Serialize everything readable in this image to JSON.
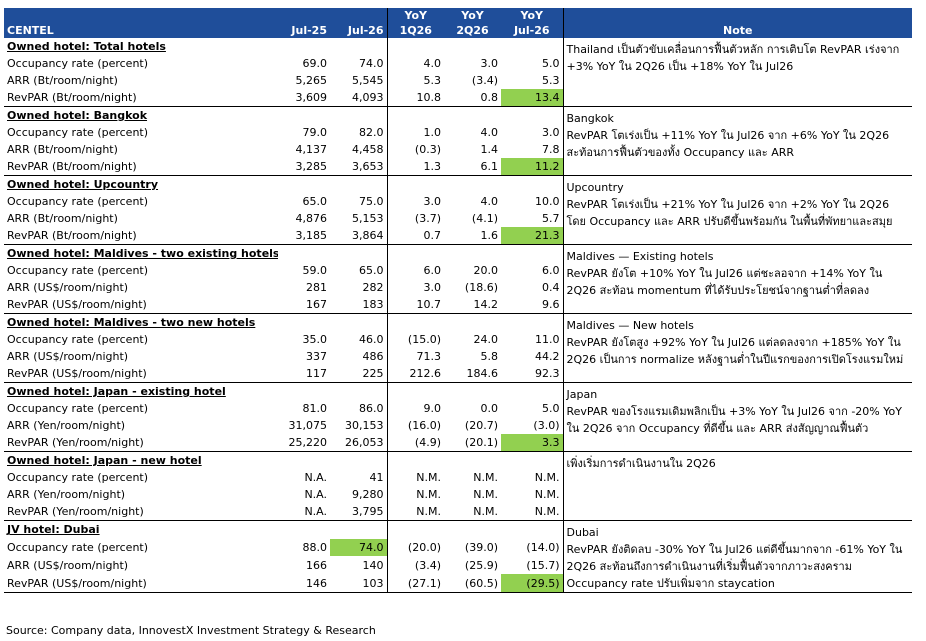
{
  "header": {
    "company": "CENTEL",
    "col_jul25": "Jul-25",
    "col_jul26": "Jul-26",
    "yoy_label": "YoY",
    "col_1q26": "1Q26",
    "col_2q26": "2Q26",
    "col_jul26_yoy": "Jul-26",
    "col_note": "Note"
  },
  "sections": [
    {
      "title": "Owned hotel: Total hotels",
      "rows": [
        {
          "label": "Occupancy rate (percent)",
          "v1": "69.0",
          "v2": "74.0",
          "y1": "4.0",
          "y2": "3.0",
          "y3": "5.0"
        },
        {
          "label": "ARR (Bt/room/night)",
          "v1": "5,265",
          "v2": "5,545",
          "y1": "5.3",
          "y2": "(3.4)",
          "y3": "5.3"
        },
        {
          "label": "RevPAR (Bt/room/night)",
          "v1": "3,609",
          "v2": "4,093",
          "y1": "10.8",
          "y2": "0.8",
          "y3": "13.4"
        }
      ],
      "note": "Thailand เป็นตัวขับเคลื่อนการฟื้นตัวหลัก การเติบโต RevPAR เร่งจาก +3% YoY ใน 2Q26 เป็น +18% YoY ใน Jul26"
    },
    {
      "title": "Owned hotel: Bangkok",
      "rows": [
        {
          "label": "Occupancy rate (percent)",
          "v1": "79.0",
          "v2": "82.0",
          "y1": "1.0",
          "y2": "4.0",
          "y3": "3.0"
        },
        {
          "label": "ARR (Bt/room/night)",
          "v1": "4,137",
          "v2": "4,458",
          "y1": "(0.3)",
          "y2": "1.4",
          "y3": "7.8"
        },
        {
          "label": "RevPAR (Bt/room/night)",
          "v1": "3,285",
          "v2": "3,653",
          "y1": "1.3",
          "y2": "6.1",
          "y3": "11.2"
        }
      ],
      "note": "Bangkok\nRevPAR โตเร่งเป็น +11% YoY ใน Jul26 จาก +6% YoY ใน 2Q26 สะท้อนการฟื้นตัวของทั้ง Occupancy และ ARR"
    },
    {
      "title": "Owned hotel: Upcountry",
      "rows": [
        {
          "label": "Occupancy rate (percent)",
          "v1": "65.0",
          "v2": "75.0",
          "y1": "3.0",
          "y2": "4.0",
          "y3": "10.0"
        },
        {
          "label": "ARR (Bt/room/night)",
          "v1": "4,876",
          "v2": "5,153",
          "y1": "(3.7)",
          "y2": "(4.1)",
          "y3": "5.7"
        },
        {
          "label": "RevPAR (Bt/room/night)",
          "v1": "3,185",
          "v2": "3,864",
          "y1": "0.7",
          "y2": "1.6",
          "y3": "21.3"
        }
      ],
      "note": "Upcountry\nRevPAR โตเร่งเป็น +21% YoY ใน Jul26 จาก +2% YoY ใน 2Q26 โดย Occupancy และ ARR ปรับดีขึ้นพร้อมกัน ในพื้นที่พัทยาและสมุย"
    },
    {
      "title": "Owned hotel: Maldives - two existing hotels",
      "rows": [
        {
          "label": "Occupancy rate (percent)",
          "v1": "59.0",
          "v2": "65.0",
          "y1": "6.0",
          "y2": "20.0",
          "y3": "6.0"
        },
        {
          "label": "ARR (US$/room/night)",
          "v1": "281",
          "v2": "282",
          "y1": "3.0",
          "y2": "(18.6)",
          "y3": "0.4"
        },
        {
          "label": "RevPAR (US$/room/night)",
          "v1": "167",
          "v2": "183",
          "y1": "10.7",
          "y2": "14.2",
          "y3": "9.6"
        }
      ],
      "note": "Maldives — Existing hotels\nRevPAR ยังโต +10% YoY ใน Jul26 แต่ชะลอจาก +14% YoY ใน 2Q26 สะท้อน momentum ที่ได้รับประโยชน์จากฐานต่ำที่ลดลง"
    },
    {
      "title": "Owned hotel: Maldives - two new hotels",
      "rows": [
        {
          "label": "Occupancy rate (percent)",
          "v1": "35.0",
          "v2": "46.0",
          "y1": "(15.0)",
          "y2": "24.0",
          "y3": "11.0"
        },
        {
          "label": "ARR (US$/room/night)",
          "v1": "337",
          "v2": "486",
          "y1": "71.3",
          "y2": "5.8",
          "y3": "44.2"
        },
        {
          "label": "RevPAR (US$/room/night)",
          "v1": "117",
          "v2": "225",
          "y1": "212.6",
          "y2": "184.6",
          "y3": "92.3"
        }
      ],
      "note": "Maldives — New hotels\nRevPAR ยังโตสูง +92% YoY ใน Jul26 แต่ลดลงจาก +185% YoY ใน 2Q26 เป็นการ normalize หลังฐานต่ำในปีแรกของการเปิดโรงแรมใหม่"
    },
    {
      "title": "Owned hotel: Japan - existing hotel",
      "rows": [
        {
          "label": "Occupancy rate (percent)",
          "v1": "81.0",
          "v2": "86.0",
          "y1": "9.0",
          "y2": "0.0",
          "y3": "5.0"
        },
        {
          "label": "ARR (Yen/room/night)",
          "v1": "31,075",
          "v2": "30,153",
          "y1": "(16.0)",
          "y2": "(20.7)",
          "y3": "(3.0)"
        },
        {
          "label": "RevPAR (Yen/room/night)",
          "v1": "25,220",
          "v2": "26,053",
          "y1": "(4.9)",
          "y2": "(20.1)",
          "y3": "3.3"
        }
      ],
      "note": "Japan\nRevPAR ของโรงแรมเดิมพลิกเป็น +3% YoY ใน Jul26 จาก -20% YoY ใน 2Q26 จาก Occupancy ที่ดีขึ้น และ ARR ส่งสัญญาณฟื้นตัว"
    },
    {
      "title": "Owned hotel: Japan - new hotel",
      "rows": [
        {
          "label": "Occupancy rate (percent)",
          "v1": "N.A.",
          "v2": "41",
          "y1": "N.M.",
          "y2": "N.M.",
          "y3": "N.M."
        },
        {
          "label": "ARR (Yen/room/night)",
          "v1": "N.A.",
          "v2": "9,280",
          "y1": "N.M.",
          "y2": "N.M.",
          "y3": "N.M."
        },
        {
          "label": "RevPAR (Yen/room/night)",
          "v1": "N.A.",
          "v2": "3,795",
          "y1": "N.M.",
          "y2": "N.M.",
          "y3": "N.M."
        }
      ],
      "note": "เพิ่งเริ่มการดำเนินงานใน 2Q26"
    },
    {
      "title": "JV hotel: Dubai",
      "rows": [
        {
          "label": "Occupancy rate (percent)",
          "v1": "88.0",
          "v2": "74.0",
          "y1": "(20.0)",
          "y2": "(39.0)",
          "y3": "(14.0)"
        },
        {
          "label": "ARR (US$/room/night)",
          "v1": "166",
          "v2": "140",
          "y1": "(3.4)",
          "y2": "(25.9)",
          "y3": "(15.7)"
        },
        {
          "label": "RevPAR (US$/room/night)",
          "v1": "146",
          "v2": "103",
          "y1": "(27.1)",
          "y2": "(60.5)",
          "y3": "(29.5)"
        }
      ],
      "note": "Dubai\nRevPAR ยังติดลบ -30% YoY ใน Jul26 แต่ดีขึ้นมากจาก -61% YoY ใน 2Q26 สะท้อนถึงการดำเนินงานที่เริ่มฟื้นตัวจากภาวะสงคราม Occupancy rate ปรับเพิ่มจาก staycation"
    }
  ],
  "highlights": {
    "color": "#92d050",
    "cells": [
      "0.2.y3",
      "1.2.y3",
      "2.2.y3",
      "5.2.y3",
      "7.0.v2",
      "7.2.y3"
    ]
  },
  "header_color": "#1f4e9a",
  "source": "Source: Company data, InnovestX Investment Strategy & Research"
}
